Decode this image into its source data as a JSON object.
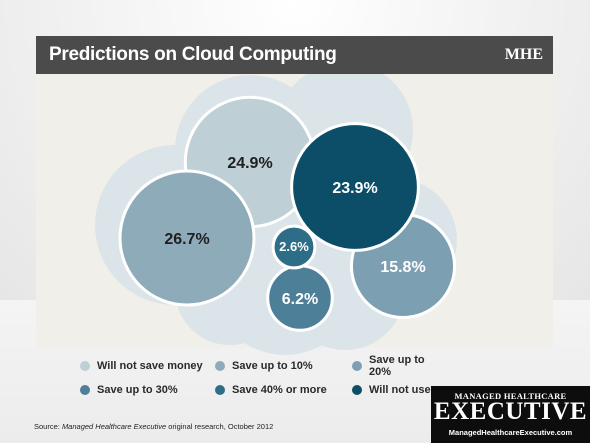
{
  "header": {
    "title": "Predictions on Cloud Computing",
    "logo": "MHE"
  },
  "colors": {
    "title_bar": "#4b4b4b",
    "panel": "#f1efe9",
    "cloud": "#dbe4e8"
  },
  "chart_data": {
    "type": "bubble",
    "unit": "%",
    "series": [
      {
        "name": "Will not save money",
        "value": 24.9,
        "label": "24.9%",
        "color": "#bfcfd6",
        "label_color": "#1f1f1f"
      },
      {
        "name": "Save up to 10%",
        "value": 26.7,
        "label": "26.7%",
        "color": "#8eabba",
        "label_color": "#1f1f1f"
      },
      {
        "name": "Save up to 20%",
        "value": 15.8,
        "label": "15.8%",
        "color": "#7d9fb2",
        "label_color": "#ffffff"
      },
      {
        "name": "Save up to 30%",
        "value": 6.2,
        "label": "6.2%",
        "color": "#4d7f99",
        "label_color": "#ffffff"
      },
      {
        "name": "Save 40% or more",
        "value": 2.6,
        "label": "2.6%",
        "color": "#2e6d87",
        "label_color": "#ffffff"
      },
      {
        "name": "Will not use",
        "value": 23.9,
        "label": "23.9%",
        "color": "#0c4d68",
        "label_color": "#ffffff"
      }
    ],
    "legend_placement": "bottom"
  },
  "source": {
    "prefix": "Source: ",
    "publication": "Managed Healthcare Executive",
    "suffix": " original research, October 2012"
  },
  "brand": {
    "top": "MANAGED HEALTHCARE",
    "main": "EXECUTIVE",
    "url": "ManagedHealthcareExecutive.com"
  }
}
